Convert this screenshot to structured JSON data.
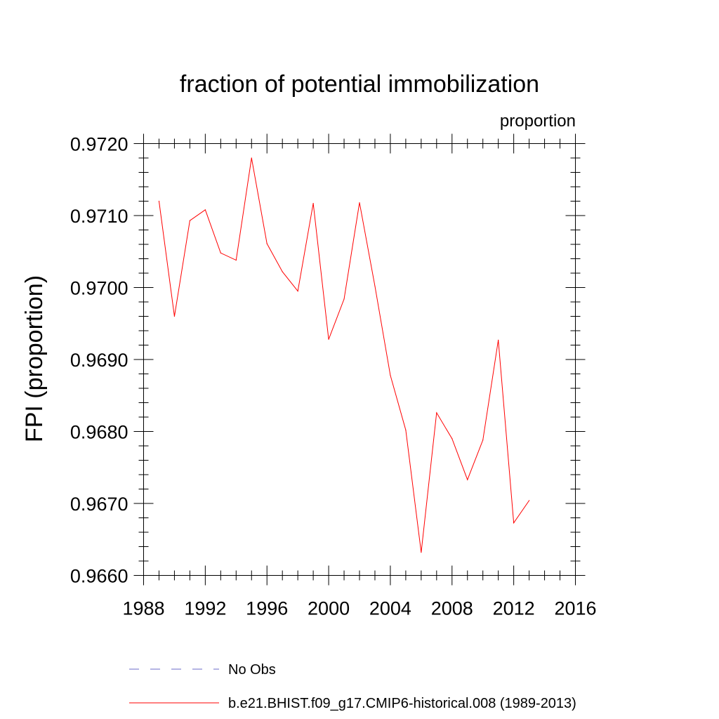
{
  "chart_data": {
    "type": "line",
    "title": "fraction of potential immobilization",
    "subtitle": "proportion",
    "ylabel": "FPI  (proportion)",
    "xlabel": "",
    "xlim": [
      1988,
      2016
    ],
    "ylim": [
      0.966,
      0.972
    ],
    "x_ticks": [
      "1988",
      "1992",
      "1996",
      "2000",
      "2004",
      "2008",
      "2012",
      "2016"
    ],
    "y_ticks": [
      "0.9660",
      "0.9670",
      "0.9680",
      "0.9690",
      "0.9700",
      "0.9710",
      "0.9720"
    ],
    "grid": false,
    "legend_position": "bottom",
    "series": [
      {
        "name": "No Obs",
        "color": "#6a6ac8",
        "style": "dashed",
        "x": [],
        "values": []
      },
      {
        "name": "b.e21.BHIST.f09_g17.CMIP6-historical.008 (1989-2013)",
        "color": "#ff0000",
        "style": "solid",
        "x": [
          1989,
          1990,
          1991,
          1992,
          1993,
          1994,
          1995,
          1996,
          1997,
          1998,
          1999,
          2000,
          2001,
          2002,
          2003,
          2004,
          2005,
          2006,
          2007,
          2008,
          2009,
          2010,
          2011,
          2012,
          2013
        ],
        "values": [
          0.9712,
          0.9696,
          0.97093,
          0.97108,
          0.97048,
          0.97038,
          0.9718,
          0.97061,
          0.97022,
          0.96995,
          0.97117,
          0.96928,
          0.96984,
          0.97118,
          0.97002,
          0.96878,
          0.96802,
          0.96632,
          0.96826,
          0.9679,
          0.96733,
          0.96788,
          0.96927,
          0.96673,
          0.96704
        ]
      }
    ]
  }
}
